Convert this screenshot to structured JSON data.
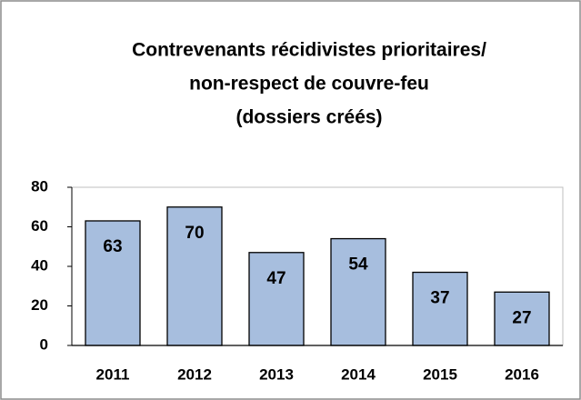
{
  "chart_data": {
    "type": "bar",
    "title": [
      "Contrevenants récidivistes prioritaires/",
      "non-respect de couvre-feu",
      "(dossiers créés)"
    ],
    "categories": [
      "2011",
      "2012",
      "2013",
      "2014",
      "2015",
      "2016"
    ],
    "values": [
      63,
      70,
      47,
      54,
      37,
      27
    ],
    "color": "#a7bede",
    "ylim": [
      0,
      80
    ],
    "yticks": [
      0,
      20,
      40,
      60,
      80
    ],
    "grid": false
  }
}
